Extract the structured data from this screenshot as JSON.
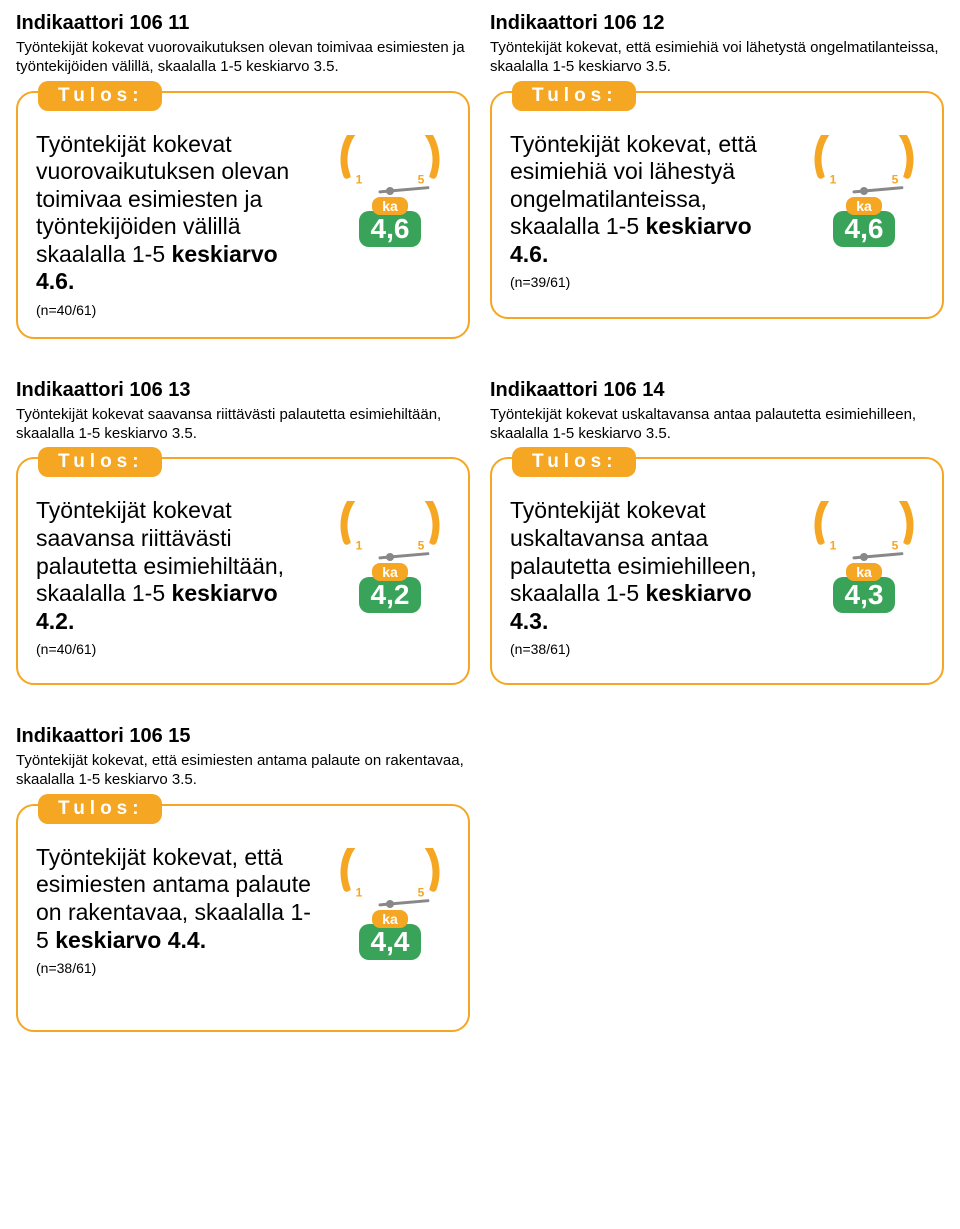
{
  "colors": {
    "orange": "#f5a623",
    "green": "#3aa35a",
    "text": "#000000",
    "bg": "#ffffff",
    "tick_text": "#f5a623"
  },
  "gauge": {
    "ticks": [
      "1",
      "2",
      "3",
      "4",
      "5"
    ],
    "needle_angle_deg": 60,
    "arc_radius": 46,
    "arc_stroke_width": 7
  },
  "badge_label": "Tulos:",
  "ka_label": "ka",
  "cards": [
    [
      {
        "title": "Indikaattori 106 11",
        "desc": "Työntekijät kokevat vuorovaikutuksen olevan toimivaa esimiesten ja työntekijöiden välillä, skaalalla 1-5 keskiarvo 3.5.",
        "result_lead": "Työntekijät kokevat vuorovaikutuksen olevan toimivaa esimiesten ja työntekijöiden välillä skaalalla 1-5 ",
        "result_bold": "keskiarvo 4.6.",
        "note": "(n=40/61)",
        "value": "4,6"
      },
      {
        "title": "Indikaattori 106 12",
        "desc": "Työntekijät kokevat, että esimiehiä voi lähetystä ongelmatilanteissa, skaalalla 1-5 keskiarvo 3.5.",
        "result_lead": "Työntekijät kokevat, että esimiehiä voi lähestyä ongelmatilanteissa, skaalalla 1-5 ",
        "result_bold": "keskiarvo 4.6.",
        "note": "(n=39/61)",
        "value": "4,6"
      }
    ],
    [
      {
        "title": "Indikaattori 106 13",
        "desc": "Työntekijät kokevat saavansa riittävästi palautetta esimiehiltään, skaalalla 1-5 keskiarvo 3.5.",
        "result_lead": "Työntekijät kokevat saavansa riittävästi palautetta esimiehiltään, skaalalla 1-5 ",
        "result_bold": "keskiarvo 4.2.",
        "note": "(n=40/61)",
        "value": "4,2"
      },
      {
        "title": "Indikaattori 106 14",
        "desc": "Työntekijät kokevat uskaltavansa antaa palautetta esimiehilleen, skaalalla 1-5 keskiarvo 3.5.",
        "result_lead": "Työntekijät kokevat uskaltavansa antaa palautetta esimiehilleen, skaalalla 1-5 ",
        "result_bold": "keskiarvo 4.3.",
        "note": "(n=38/61)",
        "value": "4,3"
      }
    ],
    [
      {
        "title": "Indikaattori 106 15",
        "desc": "Työntekijät kokevat, että esimiesten antama palaute on rakentavaa, skaalalla 1-5 keskiarvo 3.5.",
        "result_lead": "Työntekijät kokevat, että esimiesten antama palaute on rakentavaa, skaalalla 1-5 ",
        "result_bold": "keskiarvo 4.4.",
        "note": "(n=38/61)",
        "value": "4,4"
      }
    ]
  ]
}
